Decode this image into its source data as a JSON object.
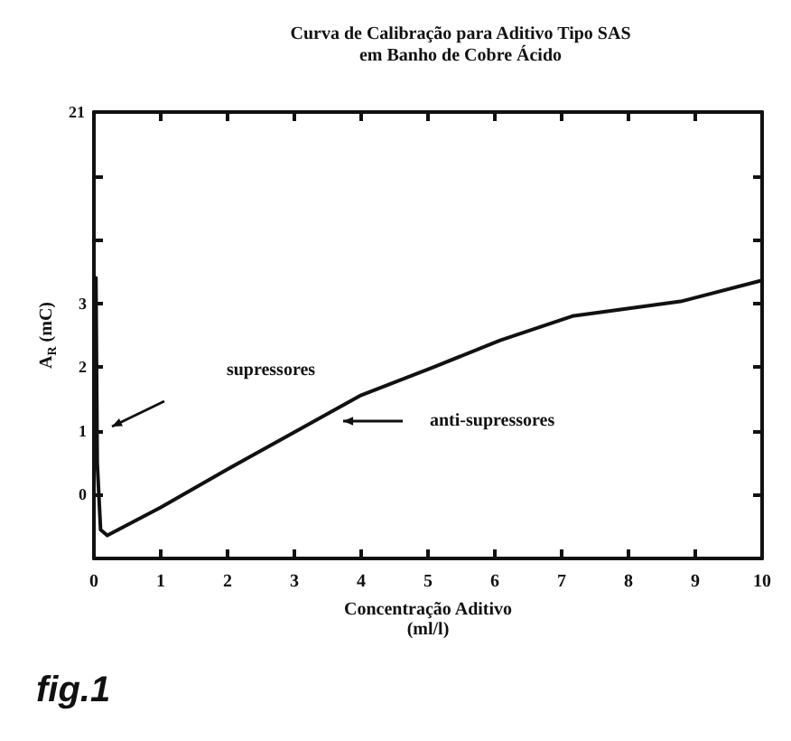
{
  "chart_data": {
    "type": "line",
    "title": "Curva de Calibração para Aditivo Tipo SAS\nem Banho de Cobre Ácido",
    "xlabel": "Concentração Aditivo\n(ml/l)",
    "ylabel": "A$_{R}$ (mC)",
    "x": [
      0.03,
      0.05,
      0.1,
      0.2,
      1,
      2,
      3,
      4,
      5.08,
      6.08,
      7.16,
      7.86,
      8.78,
      10
    ],
    "series": [
      {
        "color": "#111111",
        "values": [
          3.4,
          0.5,
          -0.55,
          -0.64,
          -0.2,
          0.4,
          0.98,
          1.56,
          2.0,
          2.42,
          2.8,
          2.9,
          3.03,
          3.36
        ]
      }
    ],
    "xlim": [
      0,
      10
    ],
    "xticks": [
      0,
      {
        "value": 1,
        "label": "1"
      },
      2,
      3,
      4,
      5,
      6,
      7,
      8,
      9,
      10
    ],
    "ylim": [
      -1,
      6
    ],
    "yticks": [
      0,
      1,
      2,
      3,
      {
        "value": 4,
        "label": null
      },
      {
        "value": 5,
        "label": null
      },
      {
        "value": 6,
        "label": null
      }
    ],
    "marker": "none",
    "line_style": "solid",
    "annotations": [
      "supressores",
      "anti-supressores",
      "fig.1",
      "21"
    ]
  }
}
